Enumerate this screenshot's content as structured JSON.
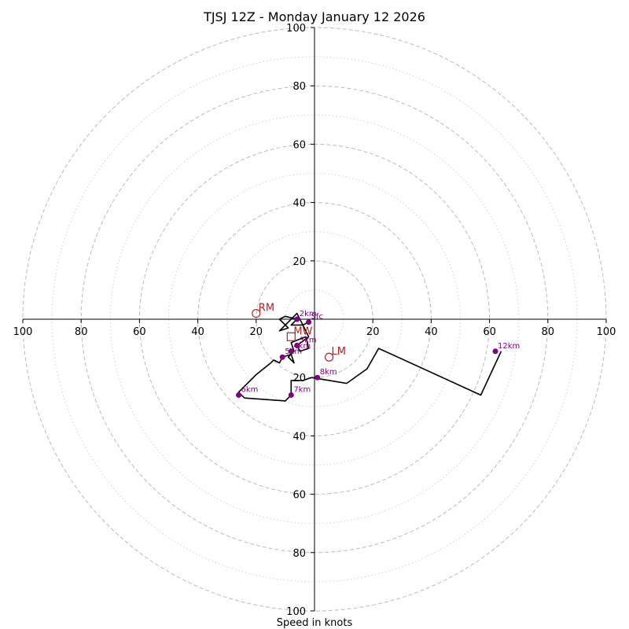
{
  "chart_data": {
    "type": "hodograph",
    "title": "TJSJ 12Z - Monday January 12 2026",
    "xlabel": "Speed in knots",
    "xlim": [
      -100,
      100
    ],
    "ylim": [
      -100,
      100
    ],
    "major_rings": [
      20,
      40,
      60,
      80,
      100
    ],
    "minor_rings": [
      10,
      30,
      50,
      70,
      90
    ],
    "x_tick_labels": [
      "100",
      "80",
      "60",
      "40",
      "20",
      "20",
      "40",
      "60",
      "80",
      "100"
    ],
    "y_tick_labels": [
      "100",
      "80",
      "60",
      "40",
      "20",
      "20",
      "40",
      "60",
      "80",
      "100"
    ],
    "colors": {
      "trace": "#000000",
      "height_marker": "#800080",
      "motion_marker": "#b22222",
      "rings": "#bbbbbb"
    },
    "trace": [
      [
        -2,
        -1
      ],
      [
        -4,
        -2
      ],
      [
        -8,
        -2
      ],
      [
        -6,
        0
      ],
      [
        -10,
        1
      ],
      [
        -12,
        0
      ],
      [
        -9,
        -3
      ],
      [
        -12,
        -4
      ],
      [
        -6,
        2
      ],
      [
        -4,
        -2
      ],
      [
        -2,
        -6
      ],
      [
        -6,
        -9
      ],
      [
        -5,
        -11
      ],
      [
        -2,
        -10
      ],
      [
        -3,
        -6
      ],
      [
        -8,
        -8
      ],
      [
        -7,
        -11
      ],
      [
        -9,
        -13
      ],
      [
        -7,
        -15
      ],
      [
        -8,
        -12
      ],
      [
        -11,
        -13
      ],
      [
        -12,
        -15
      ],
      [
        -14,
        -14
      ],
      [
        -15,
        -15
      ],
      [
        -20,
        -19
      ],
      [
        -26,
        -25
      ],
      [
        -24,
        -27
      ],
      [
        -10,
        -28
      ],
      [
        -8,
        -26
      ],
      [
        -8,
        -21
      ],
      [
        -4,
        -21
      ],
      [
        -1,
        -20
      ],
      [
        11,
        -22
      ],
      [
        18,
        -17
      ],
      [
        22,
        -10
      ],
      [
        57,
        -26
      ],
      [
        64,
        -11
      ]
    ],
    "height_markers": [
      {
        "label": "Sfc",
        "u": -2,
        "v": -1
      },
      {
        "label": "2km",
        "u": -6,
        "v": 0
      },
      {
        "label": "3km",
        "u": -6,
        "v": -9
      },
      {
        "label": "4km",
        "u": -8,
        "v": -11
      },
      {
        "label": "5km",
        "u": -11,
        "v": -13
      },
      {
        "label": "6km",
        "u": -26,
        "v": -26
      },
      {
        "label": "7km",
        "u": -8,
        "v": -26
      },
      {
        "label": "8km",
        "u": 1,
        "v": -20
      },
      {
        "label": "12km",
        "u": 62,
        "v": -11
      }
    ],
    "storm_motions": [
      {
        "label": "RM",
        "u": -20,
        "v": 2,
        "marker": "circle"
      },
      {
        "label": "LM",
        "u": 5,
        "v": -13,
        "marker": "circle"
      },
      {
        "label": "MW",
        "u": -8,
        "v": -6,
        "marker": "square"
      }
    ]
  }
}
